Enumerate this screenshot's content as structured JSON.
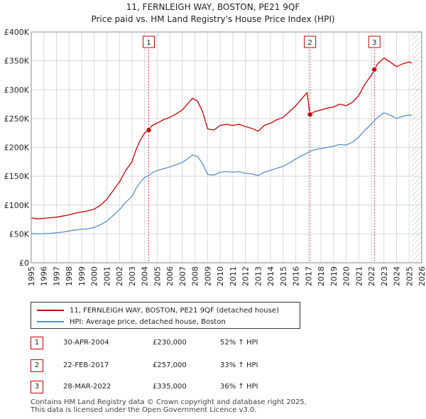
{
  "header": {
    "title": "11, FERNLEIGH WAY, BOSTON, PE21 9QF",
    "subtitle": "Price paid vs. HM Land Registry's House Price Index (HPI)"
  },
  "colors": {
    "property": "#cc0000",
    "hpi": "#5b8fce",
    "marker_line": "#cc0000",
    "hatch": "#c8cdd6"
  },
  "chart_data": {
    "type": "line",
    "title": "11, FERNLEIGH WAY, BOSTON, PE21 9QF",
    "subtitle": "Price paid vs. HM Land Registry's House Price Index (HPI)",
    "xlabel": "",
    "ylabel": "",
    "xlim": [
      1995,
      2026
    ],
    "ylim": [
      0,
      400000
    ],
    "x_ticks": [
      "1995",
      "1996",
      "1997",
      "1998",
      "1999",
      "2000",
      "2001",
      "2002",
      "2003",
      "2004",
      "2005",
      "2006",
      "2007",
      "2008",
      "2009",
      "2010",
      "2011",
      "2012",
      "2013",
      "2014",
      "2015",
      "2016",
      "2017",
      "2018",
      "2019",
      "2020",
      "2021",
      "2022",
      "2023",
      "2024",
      "2025",
      "2026"
    ],
    "y_ticks": [
      "£0",
      "£50K",
      "£100K",
      "£150K",
      "£200K",
      "£250K",
      "£300K",
      "£350K",
      "£400K"
    ],
    "grid": true,
    "hatched_from": 2025.2,
    "series": [
      {
        "name": "11, FERNLEIGH WAY, BOSTON, PE21 9QF (detached house)",
        "color": "#cc0000",
        "points": [
          [
            1995.0,
            78000
          ],
          [
            1995.5,
            76000
          ],
          [
            1996.0,
            77000
          ],
          [
            1996.5,
            78000
          ],
          [
            1997.0,
            79000
          ],
          [
            1997.5,
            81000
          ],
          [
            1998.0,
            83000
          ],
          [
            1998.5,
            86000
          ],
          [
            1999.0,
            88000
          ],
          [
            1999.5,
            90000
          ],
          [
            2000.0,
            93000
          ],
          [
            2000.5,
            100000
          ],
          [
            2001.0,
            110000
          ],
          [
            2001.5,
            125000
          ],
          [
            2002.0,
            140000
          ],
          [
            2002.5,
            160000
          ],
          [
            2003.0,
            175000
          ],
          [
            2003.3,
            195000
          ],
          [
            2003.6,
            210000
          ],
          [
            2004.0,
            225000
          ],
          [
            2004.33,
            230000
          ],
          [
            2004.6,
            238000
          ],
          [
            2005.0,
            242000
          ],
          [
            2005.5,
            248000
          ],
          [
            2006.0,
            252000
          ],
          [
            2006.5,
            258000
          ],
          [
            2007.0,
            265000
          ],
          [
            2007.4,
            275000
          ],
          [
            2007.8,
            285000
          ],
          [
            2008.2,
            280000
          ],
          [
            2008.6,
            262000
          ],
          [
            2009.0,
            232000
          ],
          [
            2009.5,
            230000
          ],
          [
            2010.0,
            238000
          ],
          [
            2010.5,
            240000
          ],
          [
            2011.0,
            238000
          ],
          [
            2011.5,
            240000
          ],
          [
            2012.0,
            236000
          ],
          [
            2012.5,
            233000
          ],
          [
            2013.0,
            228000
          ],
          [
            2013.5,
            238000
          ],
          [
            2014.0,
            242000
          ],
          [
            2014.5,
            248000
          ],
          [
            2015.0,
            252000
          ],
          [
            2015.5,
            262000
          ],
          [
            2016.0,
            272000
          ],
          [
            2016.5,
            285000
          ],
          [
            2016.9,
            295000
          ],
          [
            2017.13,
            257000
          ],
          [
            2017.5,
            262000
          ],
          [
            2018.0,
            265000
          ],
          [
            2018.5,
            268000
          ],
          [
            2019.0,
            270000
          ],
          [
            2019.5,
            275000
          ],
          [
            2020.0,
            272000
          ],
          [
            2020.5,
            278000
          ],
          [
            2021.0,
            290000
          ],
          [
            2021.5,
            310000
          ],
          [
            2022.0,
            325000
          ],
          [
            2022.24,
            335000
          ],
          [
            2022.5,
            345000
          ],
          [
            2023.0,
            355000
          ],
          [
            2023.5,
            348000
          ],
          [
            2024.0,
            340000
          ],
          [
            2024.5,
            345000
          ],
          [
            2025.0,
            348000
          ],
          [
            2025.2,
            346000
          ]
        ]
      },
      {
        "name": "HPI: Average price, detached house, Boston",
        "color": "#5b8fce",
        "points": [
          [
            1995.0,
            51000
          ],
          [
            1995.5,
            50000
          ],
          [
            1996.0,
            50500
          ],
          [
            1996.5,
            51000
          ],
          [
            1997.0,
            52000
          ],
          [
            1997.5,
            53000
          ],
          [
            1998.0,
            55000
          ],
          [
            1998.5,
            57000
          ],
          [
            1999.0,
            58000
          ],
          [
            1999.5,
            59000
          ],
          [
            2000.0,
            61000
          ],
          [
            2000.5,
            66000
          ],
          [
            2001.0,
            72000
          ],
          [
            2001.5,
            82000
          ],
          [
            2002.0,
            92000
          ],
          [
            2002.5,
            105000
          ],
          [
            2003.0,
            115000
          ],
          [
            2003.3,
            128000
          ],
          [
            2003.6,
            138000
          ],
          [
            2004.0,
            148000
          ],
          [
            2004.33,
            151000
          ],
          [
            2004.6,
            156000
          ],
          [
            2005.0,
            160000
          ],
          [
            2005.5,
            163000
          ],
          [
            2006.0,
            166000
          ],
          [
            2006.5,
            170000
          ],
          [
            2007.0,
            174000
          ],
          [
            2007.4,
            180000
          ],
          [
            2007.8,
            187000
          ],
          [
            2008.2,
            184000
          ],
          [
            2008.6,
            172000
          ],
          [
            2009.0,
            153000
          ],
          [
            2009.5,
            152000
          ],
          [
            2010.0,
            157000
          ],
          [
            2010.5,
            158000
          ],
          [
            2011.0,
            157000
          ],
          [
            2011.5,
            158000
          ],
          [
            2012.0,
            155000
          ],
          [
            2012.5,
            154000
          ],
          [
            2013.0,
            151000
          ],
          [
            2013.5,
            157000
          ],
          [
            2014.0,
            160000
          ],
          [
            2014.5,
            164000
          ],
          [
            2015.0,
            167000
          ],
          [
            2015.5,
            173000
          ],
          [
            2016.0,
            180000
          ],
          [
            2016.5,
            186000
          ],
          [
            2016.9,
            190000
          ],
          [
            2017.13,
            193000
          ],
          [
            2017.5,
            196000
          ],
          [
            2018.0,
            198000
          ],
          [
            2018.5,
            200000
          ],
          [
            2019.0,
            202000
          ],
          [
            2019.5,
            205000
          ],
          [
            2020.0,
            204000
          ],
          [
            2020.5,
            209000
          ],
          [
            2021.0,
            218000
          ],
          [
            2021.5,
            230000
          ],
          [
            2022.0,
            240000
          ],
          [
            2022.24,
            246000
          ],
          [
            2022.5,
            252000
          ],
          [
            2023.0,
            260000
          ],
          [
            2023.5,
            256000
          ],
          [
            2024.0,
            250000
          ],
          [
            2024.5,
            254000
          ],
          [
            2025.0,
            256000
          ],
          [
            2025.2,
            255000
          ]
        ]
      }
    ],
    "markers": [
      {
        "label": "1",
        "x": 2004.33,
        "y": 230000
      },
      {
        "label": "2",
        "x": 2017.13,
        "y": 257000
      },
      {
        "label": "3",
        "x": 2022.24,
        "y": 335000
      }
    ]
  },
  "legend": {
    "items": [
      {
        "label": "11, FERNLEIGH WAY, BOSTON, PE21 9QF (detached house)"
      },
      {
        "label": "HPI: Average price, detached house, Boston"
      }
    ]
  },
  "transactions": [
    {
      "num": "1",
      "date": "30-APR-2004",
      "price": "£230,000",
      "hpi": "52% ↑ HPI"
    },
    {
      "num": "2",
      "date": "22-FEB-2017",
      "price": "£257,000",
      "hpi": "33% ↑ HPI"
    },
    {
      "num": "3",
      "date": "28-MAR-2022",
      "price": "£335,000",
      "hpi": "36% ↑ HPI"
    }
  ],
  "footer": {
    "line1": "Contains HM Land Registry data © Crown copyright and database right 2025.",
    "line2": "This data is licensed under the Open Government Licence v3.0."
  }
}
